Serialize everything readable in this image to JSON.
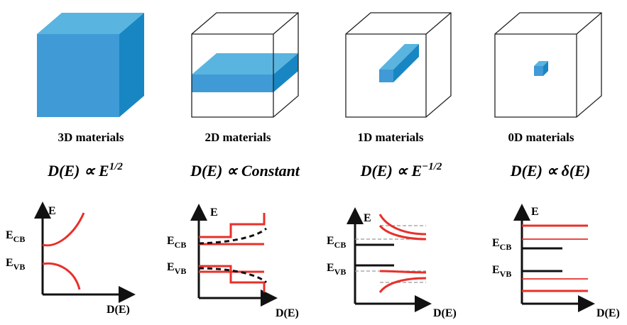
{
  "panels": [
    {
      "label": "3D materials",
      "formula": {
        "text": "D(E) ∝ E",
        "sup": "1/2"
      },
      "axis_y": "E",
      "axis_x": "D(E)",
      "cb": {
        "main": "E",
        "sub": "CB"
      },
      "vb": {
        "main": "E",
        "sub": "VB"
      }
    },
    {
      "label": "2D materials",
      "formula": {
        "text": "D(E) ∝ Constant"
      },
      "axis_y": "E",
      "axis_x": "D(E)",
      "cb": {
        "main": "E",
        "sub": "CB"
      },
      "vb": {
        "main": "E",
        "sub": "VB"
      }
    },
    {
      "label": "1D materials",
      "formula": {
        "text": "D(E) ∝ E",
        "sup": "−1/2"
      },
      "axis_y": "E",
      "axis_x": "D(E)",
      "cb": {
        "main": "E",
        "sub": "CB"
      },
      "vb": {
        "main": "E",
        "sub": "VB"
      }
    },
    {
      "label": "0D materials",
      "formula": {
        "text": "D(E) ∝ δ(E)"
      },
      "axis_y": "E",
      "axis_x": "D(E)",
      "cb": {
        "main": "E",
        "sub": "CB"
      },
      "vb": {
        "main": "E",
        "sub": "VB"
      }
    }
  ]
}
